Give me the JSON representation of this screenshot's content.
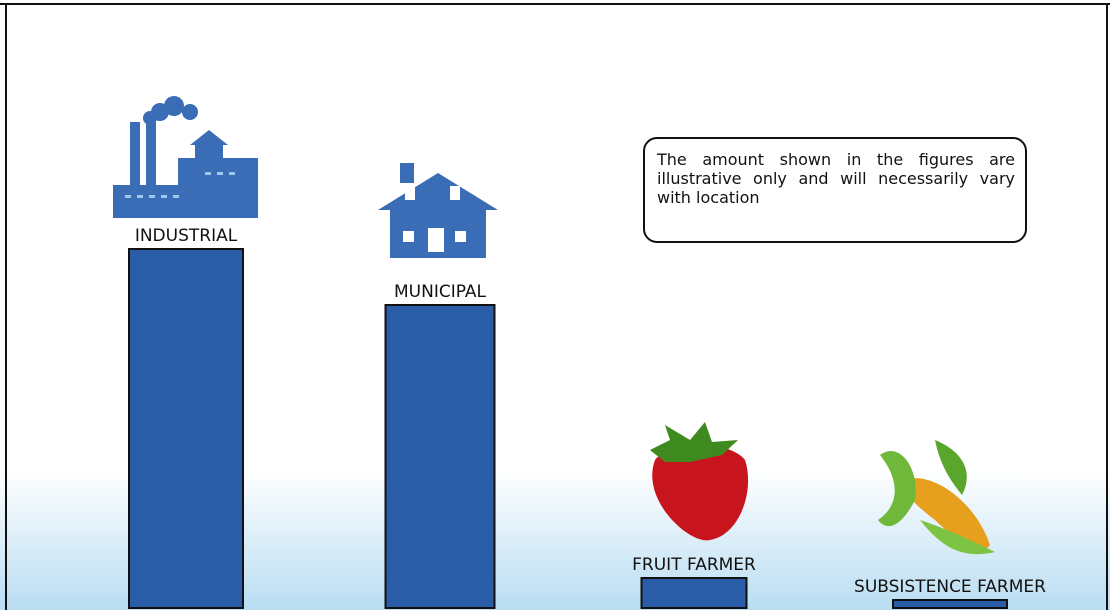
{
  "chart_data": {
    "type": "bar",
    "categories": [
      "INDUSTRIAL",
      "MUNICIPAL",
      "FRUIT FARMER",
      "SUBSISTENCE FARMER"
    ],
    "values": [
      359,
      303,
      30,
      8
    ],
    "color": "#2b5ca8",
    "ylim": [
      0,
      400
    ],
    "annotation": "The amount shown in the figures are illustrative only and will necessarily vary with location"
  }
}
